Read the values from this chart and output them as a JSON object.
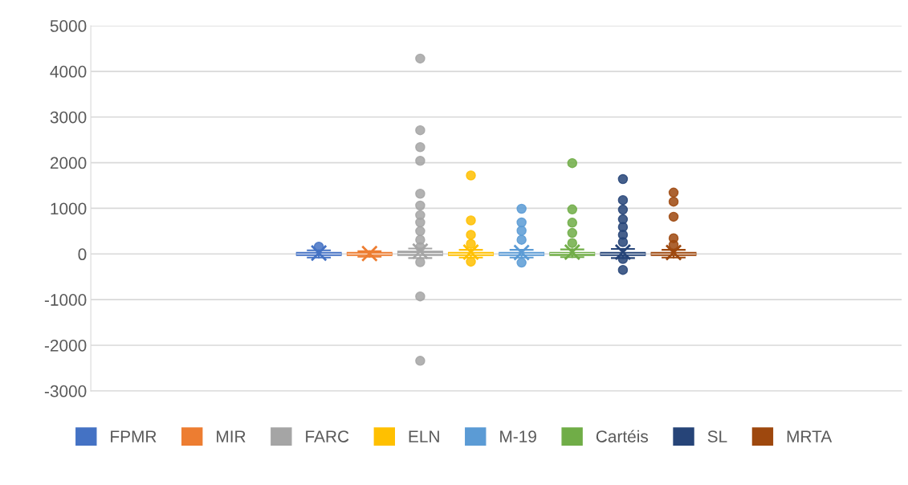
{
  "chart_data": {
    "type": "box",
    "categories": [
      null
    ],
    "ylim": [
      -3000,
      5000
    ],
    "yticks": [
      -3000,
      -2000,
      -1000,
      0,
      1000,
      2000,
      3000,
      4000,
      5000
    ],
    "grid": "y",
    "legend": "bottom",
    "tick_labels": "y",
    "series": [
      {
        "name": "FPMR",
        "color": "#4472c4",
        "boxes": [
          {
            "low": -80,
            "q1": -30,
            "median": 0,
            "q3": 30,
            "high": 80,
            "mean": 20,
            "outliers": [
              160
            ]
          }
        ]
      },
      {
        "name": "MIR",
        "color": "#ed7d31",
        "boxes": [
          {
            "low": -60,
            "q1": -30,
            "median": 0,
            "q3": 30,
            "high": 60,
            "mean": 10
          }
        ]
      },
      {
        "name": "FARC",
        "color": "#a5a5a5",
        "boxes": [
          {
            "low": -90,
            "q1": -30,
            "median": 10,
            "q3": 60,
            "high": 120,
            "mean": 60,
            "outliers": [
              4280,
              2710,
              2340,
              2040,
              1320,
              1060,
              850,
              690,
              500,
              310,
              150,
              -180,
              -930,
              -2340
            ]
          }
        ]
      },
      {
        "name": "ELN",
        "color": "#ffc000",
        "boxes": [
          {
            "low": -80,
            "q1": -30,
            "median": 0,
            "q3": 30,
            "high": 90,
            "mean": 40,
            "outliers": [
              1720,
              735,
              420,
              220,
              -170
            ]
          }
        ]
      },
      {
        "name": "M-19",
        "color": "#5b9bd5",
        "boxes": [
          {
            "low": -80,
            "q1": -30,
            "median": 0,
            "q3": 30,
            "high": 90,
            "mean": 30,
            "outliers": [
              990,
              690,
              510,
              310,
              -190
            ]
          }
        ]
      },
      {
        "name": "Cartéis",
        "color": "#70ad47",
        "boxes": [
          {
            "low": -70,
            "q1": -30,
            "median": 10,
            "q3": 30,
            "high": 100,
            "mean": 40,
            "outliers": [
              1990,
              975,
              685,
              460,
              240
            ]
          }
        ]
      },
      {
        "name": "SL",
        "color": "#264478",
        "boxes": [
          {
            "low": -90,
            "q1": -30,
            "median": 0,
            "q3": 30,
            "high": 110,
            "mean": 40,
            "outliers": [
              1640,
              1180,
              970,
              760,
              590,
              420,
              260,
              -110,
              -350
            ]
          }
        ]
      },
      {
        "name": "MRTA",
        "color": "#9e480e",
        "boxes": [
          {
            "low": -80,
            "q1": -30,
            "median": 0,
            "q3": 30,
            "high": 90,
            "mean": 30,
            "outliers": [
              1345,
              1145,
              815,
              345,
              200
            ]
          }
        ]
      }
    ]
  }
}
